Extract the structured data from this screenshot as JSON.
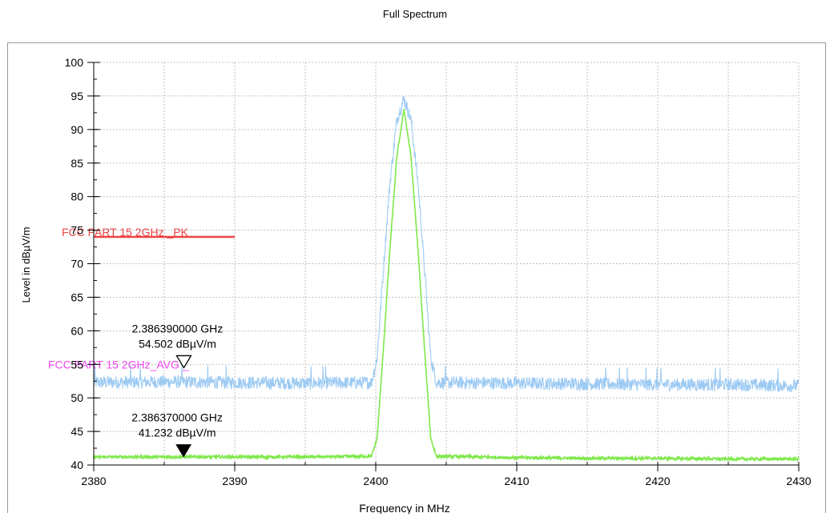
{
  "title": "Full Spectrum",
  "colors": {
    "peak_trace": "#9ccaf3",
    "avg_trace": "#7ee84a",
    "limit_pk": "#ee4444",
    "limit_avg": "#ee44ee",
    "grid": "#c0c0c0"
  },
  "chart_data": {
    "type": "line",
    "title": "Full Spectrum",
    "xlabel": "Frequency in MHz",
    "ylabel": "Level in dBµV/m",
    "xlim": [
      2380,
      2430
    ],
    "ylim": [
      40,
      100
    ],
    "xticks": [
      2380,
      2390,
      2400,
      2410,
      2420,
      2430
    ],
    "yticks": [
      40,
      45,
      50,
      55,
      60,
      65,
      70,
      75,
      80,
      85,
      90,
      95,
      100
    ],
    "grid": true,
    "series": [
      {
        "color": "#9ccaf3",
        "noise_band": [
          51.0,
          53.8
        ],
        "x": [
          2380,
          2385,
          2390,
          2395,
          2399.7,
          2400.1,
          2400.5,
          2401.0,
          2401.5,
          2402.0,
          2402.5,
          2403.0,
          2403.5,
          2403.9,
          2404.3,
          2410,
          2415,
          2420,
          2425,
          2430
        ],
        "y": [
          52.3,
          52.4,
          52.3,
          52.2,
          52.3,
          56.0,
          68.0,
          82.0,
          91.5,
          94.6,
          91.5,
          82.0,
          68.0,
          56.0,
          52.3,
          52.2,
          52.1,
          52.0,
          52.0,
          51.8
        ]
      },
      {
        "color": "#7ee84a",
        "noise_band": [
          40.9,
          41.5
        ],
        "x": [
          2380,
          2385,
          2390,
          2395,
          2399.7,
          2400.1,
          2400.5,
          2401.0,
          2401.5,
          2402.0,
          2402.5,
          2403.0,
          2403.5,
          2403.9,
          2404.3,
          2410,
          2415,
          2420,
          2425,
          2430
        ],
        "y": [
          41.2,
          41.2,
          41.2,
          41.2,
          41.3,
          44.0,
          56.0,
          72.0,
          86.0,
          93.0,
          86.0,
          72.0,
          56.0,
          44.0,
          41.3,
          41.1,
          41.0,
          41.0,
          40.9,
          40.9
        ]
      }
    ],
    "limits": [
      {
        "label": "FCC PART 15 2GHz _PK",
        "value": 74,
        "x_range": [
          2380,
          2390
        ],
        "color": "#ee4444"
      },
      {
        "label": "FCC PART 15 2GHz_AVG _",
        "value": 54,
        "x_range": [
          2380,
          2390
        ],
        "color": "#ee44ee"
      }
    ],
    "markers": [
      {
        "freq_text": "2.386390000 GHz",
        "level_text": "54.502 dBµV/m",
        "x": 2386.39,
        "y": 54.502,
        "style": "hollow"
      },
      {
        "freq_text": "2.386370000 GHz",
        "level_text": "41.232 dBµV/m",
        "x": 2386.37,
        "y": 41.232,
        "style": "filled"
      }
    ]
  }
}
